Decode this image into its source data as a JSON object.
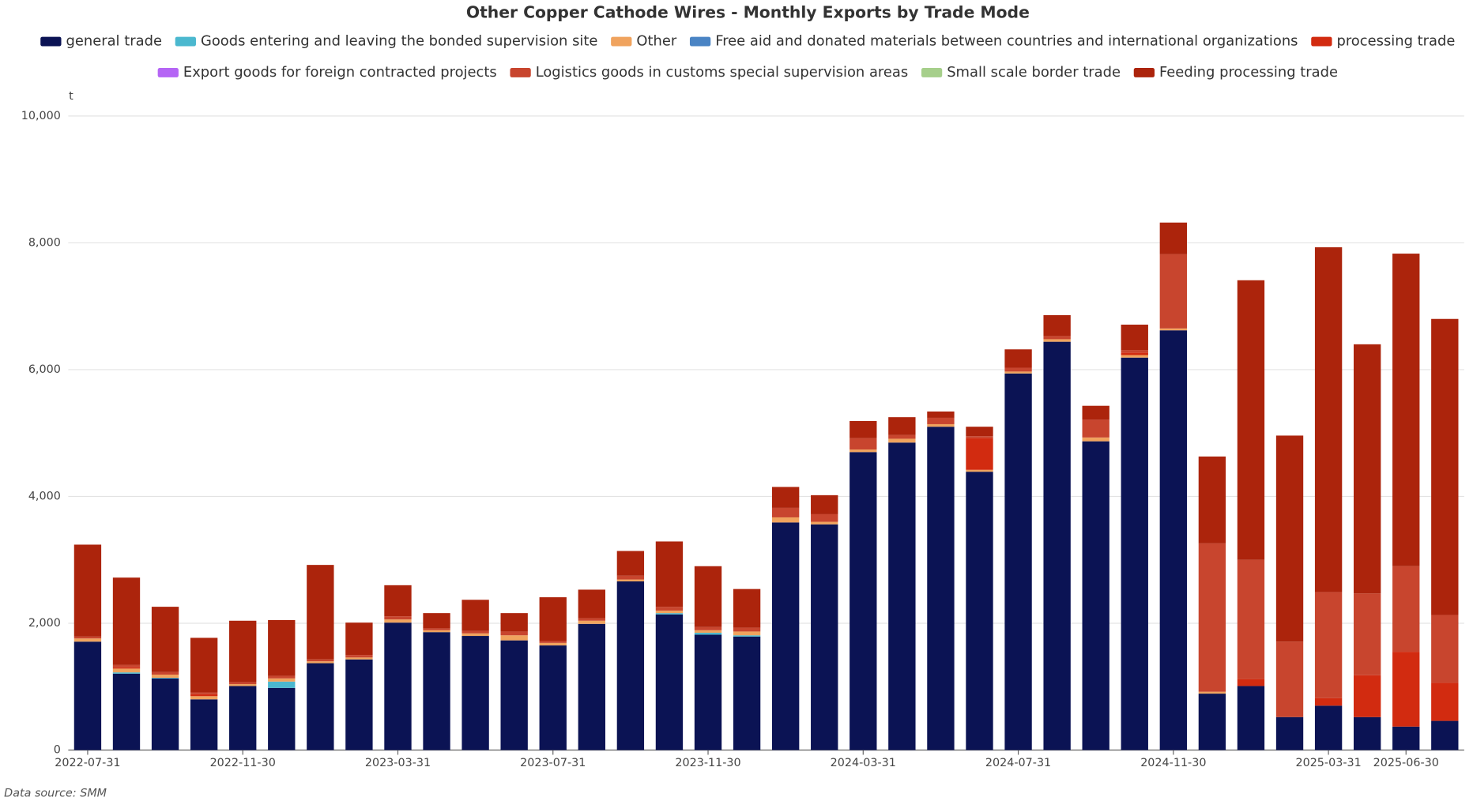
{
  "chart_data": {
    "type": "stacked-bar",
    "title": "Other Copper Cathode Wires - Monthly Exports by Trade Mode",
    "y_axis_unit": "t",
    "source": "Data source:  SMM",
    "categories": [
      "2022-07-31",
      null,
      null,
      null,
      "2022-11-30",
      null,
      null,
      null,
      "2023-03-31",
      null,
      null,
      null,
      "2023-07-31",
      null,
      null,
      null,
      "2023-11-30",
      null,
      null,
      null,
      "2024-03-31",
      null,
      null,
      null,
      "2024-07-31",
      null,
      null,
      null,
      "2024-11-30",
      null,
      null,
      null,
      "2025-03-31",
      null,
      "2025-06-30",
      null
    ],
    "ylim": [
      0,
      10000
    ],
    "yticks": [
      0,
      {
        "value": 2000,
        "label": "2,000"
      },
      {
        "value": 4000,
        "label": "4,000"
      },
      {
        "value": 6000,
        "label": "6,000"
      },
      {
        "value": 8000,
        "label": "8,000"
      },
      {
        "value": 10000,
        "label": "10,000"
      }
    ],
    "grid": true,
    "legend": "top",
    "series": [
      {
        "name": "general trade",
        "color": "#0b1354",
        "values": [
          1710,
          1205,
          1130,
          800,
          1010,
          980,
          1370,
          1430,
          2010,
          1860,
          1800,
          1730,
          1650,
          1990,
          2660,
          2140,
          1820,
          1790,
          3590,
          3560,
          4700,
          4850,
          5100,
          4390,
          5940,
          6440,
          4870,
          6190,
          6620,
          890,
          1010,
          520,
          700,
          520,
          370,
          460
        ]
      },
      {
        "name": "Goods entering and leaving the bonded supervision site",
        "color": "#4bb8cf",
        "values": [
          0,
          20,
          10,
          0,
          0,
          100,
          0,
          0,
          0,
          0,
          0,
          0,
          0,
          0,
          0,
          20,
          30,
          20,
          0,
          0,
          0,
          0,
          0,
          0,
          0,
          0,
          0,
          0,
          0,
          0,
          0,
          0,
          0,
          0,
          0,
          0
        ]
      },
      {
        "name": "Other",
        "color": "#f0a35e",
        "values": [
          50,
          60,
          50,
          50,
          30,
          50,
          30,
          30,
          50,
          30,
          40,
          80,
          40,
          50,
          30,
          40,
          40,
          60,
          80,
          40,
          40,
          60,
          40,
          30,
          30,
          40,
          60,
          40,
          30,
          30,
          0,
          0,
          0,
          0,
          0,
          0
        ]
      },
      {
        "name": "Free aid and donated materials between countries and international organizations",
        "color": "#4a84c4",
        "values": [
          0,
          0,
          0,
          0,
          0,
          0,
          0,
          0,
          0,
          0,
          0,
          0,
          0,
          0,
          0,
          0,
          0,
          0,
          0,
          0,
          0,
          0,
          0,
          0,
          0,
          0,
          0,
          0,
          0,
          0,
          0,
          0,
          0,
          0,
          0,
          0
        ]
      },
      {
        "name": "processing trade",
        "color": "#d22b10",
        "values": [
          0,
          20,
          0,
          30,
          0,
          0,
          0,
          0,
          0,
          0,
          0,
          0,
          0,
          0,
          0,
          0,
          0,
          0,
          0,
          0,
          0,
          0,
          0,
          500,
          0,
          0,
          0,
          40,
          0,
          0,
          110,
          0,
          120,
          660,
          1180,
          600
        ]
      },
      {
        "name": "Export goods for foreign contracted projects",
        "color": "#b565f5",
        "values": [
          0,
          0,
          0,
          0,
          0,
          0,
          0,
          0,
          0,
          0,
          0,
          0,
          0,
          0,
          0,
          0,
          0,
          0,
          0,
          0,
          0,
          0,
          0,
          0,
          0,
          0,
          0,
          0,
          0,
          0,
          0,
          0,
          0,
          0,
          0,
          0
        ]
      },
      {
        "name": "Logistics goods in customs special supervision areas",
        "color": "#c8452e",
        "values": [
          30,
          40,
          40,
          30,
          30,
          40,
          30,
          40,
          50,
          30,
          40,
          60,
          30,
          40,
          60,
          60,
          50,
          60,
          150,
          120,
          180,
          60,
          100,
          30,
          60,
          50,
          280,
          40,
          1170,
          2340,
          1880,
          1190,
          1670,
          1290,
          1350,
          1070
        ]
      },
      {
        "name": "Small scale border trade",
        "color": "#a6cf8b",
        "values": [
          0,
          0,
          0,
          0,
          0,
          0,
          0,
          0,
          0,
          0,
          0,
          0,
          0,
          0,
          0,
          0,
          0,
          0,
          0,
          0,
          0,
          0,
          0,
          0,
          0,
          0,
          0,
          0,
          0,
          0,
          0,
          0,
          0,
          0,
          0,
          0
        ]
      },
      {
        "name": "Feeding processing trade",
        "color": "#ac240c",
        "values": [
          1450,
          1375,
          1030,
          860,
          970,
          880,
          1490,
          510,
          490,
          240,
          490,
          290,
          690,
          450,
          390,
          1030,
          960,
          610,
          330,
          300,
          270,
          280,
          100,
          150,
          290,
          330,
          220,
          400,
          500,
          1370,
          4410,
          3250,
          5440,
          3930,
          4930,
          4670
        ]
      }
    ]
  }
}
